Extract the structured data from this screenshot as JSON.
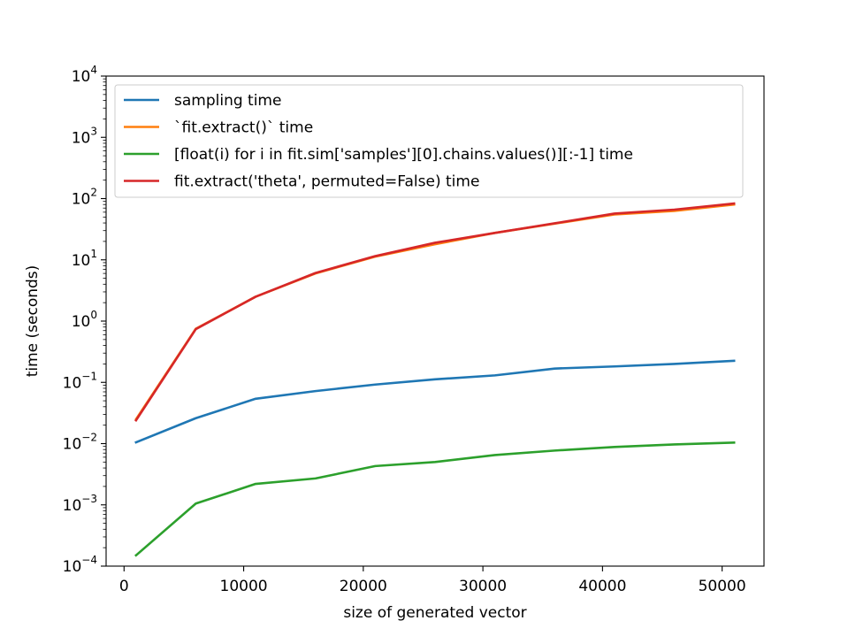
{
  "chart_data": {
    "type": "line",
    "title": "",
    "xlabel": "size of generated vector",
    "ylabel": "time (seconds)",
    "xscale": "linear",
    "yscale": "log",
    "xlim": [
      -1500,
      53500
    ],
    "ylim": [
      0.0001,
      10000
    ],
    "xticks": [
      0,
      10000,
      20000,
      30000,
      40000,
      50000
    ],
    "xtick_labels": [
      "0",
      "10000",
      "20000",
      "30000",
      "40000",
      "50000"
    ],
    "yticks": [
      0.0001,
      0.001,
      0.01,
      0.1,
      1,
      10,
      100,
      1000,
      10000
    ],
    "ytick_base": [
      "10",
      "10",
      "10",
      "10",
      "10",
      "10",
      "10",
      "10",
      "10"
    ],
    "ytick_exp": [
      "−4",
      "−3",
      "−2",
      "−1",
      "0",
      "1",
      "2",
      "3",
      "4"
    ],
    "grid": false,
    "legend_position": "upper-left",
    "x": [
      1000,
      6000,
      11000,
      16000,
      21000,
      26000,
      31000,
      36000,
      41000,
      46000,
      51000
    ],
    "series": [
      {
        "name": "sampling time",
        "color": "#1f77b4",
        "values": [
          0.0105,
          0.026,
          0.054,
          0.072,
          0.092,
          0.112,
          0.13,
          0.168,
          0.182,
          0.2,
          0.225
        ]
      },
      {
        "name": "`fit.extract()` time",
        "color": "#ff7f0e",
        "values": [
          0.025,
          0.75,
          2.5,
          6.0,
          11.3,
          18.0,
          27.5,
          39.0,
          55.0,
          63.0,
          80.0
        ]
      },
      {
        "name": "[float(i) for i in fit.sim['samples'][0].chains.values()][:-1] time",
        "color": "#2ca02c",
        "values": [
          0.00015,
          0.00105,
          0.0022,
          0.0027,
          0.0043,
          0.005,
          0.0065,
          0.0077,
          0.0088,
          0.0097,
          0.0104
        ]
      },
      {
        "name": "fit.extract('theta', permuted=False) time",
        "color": "#d62728",
        "values": [
          0.024,
          0.74,
          2.5,
          6.1,
          11.5,
          19.0,
          27.5,
          39.5,
          57.0,
          66.0,
          83.0
        ]
      }
    ]
  }
}
